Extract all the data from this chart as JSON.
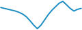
{
  "x": [
    0,
    1,
    2,
    3,
    4,
    5,
    6,
    7,
    8,
    9,
    10,
    11,
    12,
    13,
    14,
    15,
    16,
    17,
    18,
    19,
    20,
    21,
    22
  ],
  "y": [
    1.8,
    1.6,
    1.4,
    1.2,
    1.0,
    0.7,
    0.3,
    -0.3,
    -1.2,
    -2.2,
    -3.0,
    -2.2,
    -1.0,
    0.2,
    1.2,
    2.0,
    2.8,
    3.2,
    2.4,
    1.6,
    1.0,
    1.4,
    1.6
  ],
  "line_color": "#1b8cc2",
  "linewidth": 1.4,
  "background_color": "#ffffff"
}
